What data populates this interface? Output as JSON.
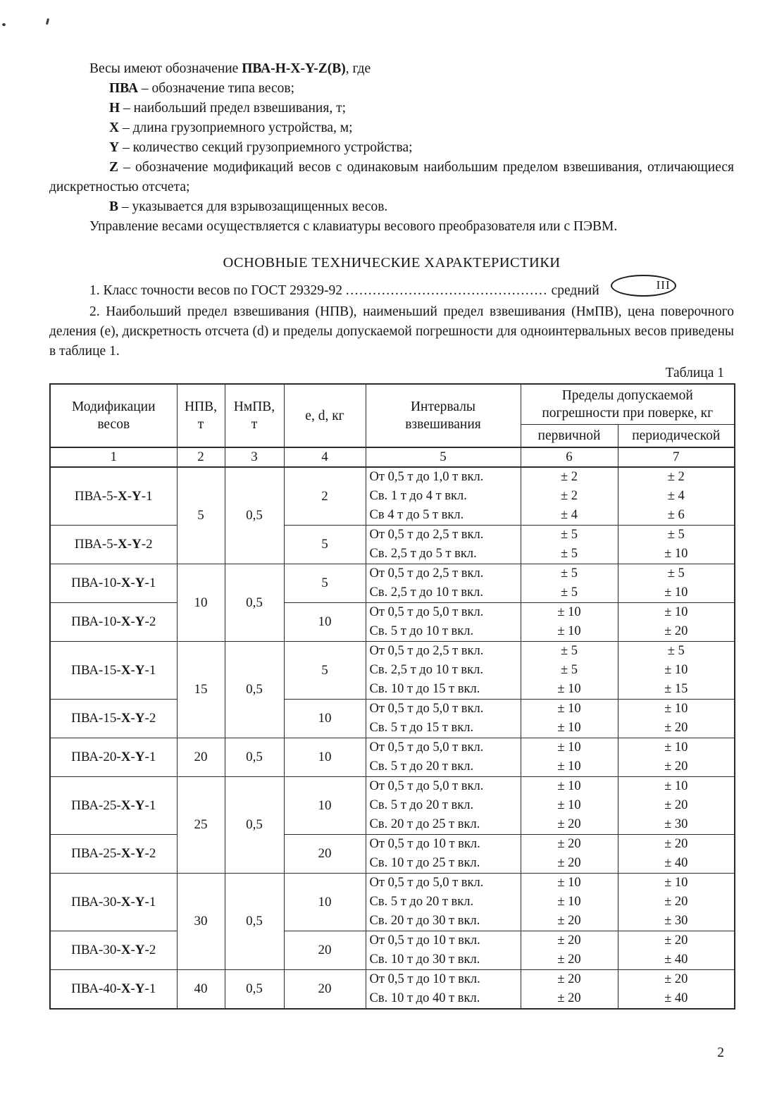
{
  "intro": {
    "line1_normal": "Весы имеют обозначение ",
    "line1_bold": "ПВА-Н-X-Y-Z(В)",
    "line1_tail": ", где",
    "items": [
      {
        "term": "ПВА",
        "text": " – обозначение типа весов;",
        "justify": false
      },
      {
        "term": "Н",
        "text": " – наибольший предел взвешивания, т;",
        "justify": false
      },
      {
        "term": "X",
        "text": " – длина грузоприемного устройства, м;",
        "justify": false
      },
      {
        "term": "Y",
        "text": " – количество секций грузоприемного устройства;",
        "justify": false
      },
      {
        "term": "Z",
        "text": " – обозначение модификаций весов с одинаковым наибольшим пределом взвешивания, отличающиеся дискретностью отсчета;",
        "justify": true
      },
      {
        "term": "В",
        "text": " – указывается для взрывозащищенных весов.",
        "justify": false
      }
    ],
    "control_line": "Управление весами осуществляется с клавиатуры весового преобразователя или с ПЭВМ."
  },
  "section_title": "ОСНОВНЫЕ ТЕХНИЧЕСКИЕ ХАРАКТЕРИСТИКИ",
  "para1": {
    "text": "1. Класс точности весов по ГОСТ 29329-92 ",
    "dots": ".............................................",
    "value": " средний",
    "badge": "III"
  },
  "para2": "2. Наибольший предел взвешивания (НПВ), наименьший предел взвешивания (НмПВ), цена поверочного деления (е), дискретность отсчета (d) и пределы допускаемой погрешности для одноинтервальных весов приведены в таблице 1.",
  "table_caption": "Таблица 1",
  "page_number": "2",
  "table": {
    "headers": {
      "modifications": "Модификации\nвесов",
      "npv": "НПВ,\nт",
      "nmpv": "НмПВ,\nт",
      "ed": "e, d, кг",
      "intervals": "Интервалы\nвзвешивания",
      "limits": "Пределы допускаемой\nпогрешности при поверке, кг",
      "primary": "первичной",
      "periodic": "периодической"
    },
    "col_numbers": [
      "1",
      "2",
      "3",
      "4",
      "5",
      "6",
      "7"
    ],
    "groups": [
      {
        "npv": "5",
        "nmpv": "0,5",
        "mods": [
          {
            "name": "ПВА-5-X-Y-1",
            "ed": "2",
            "rows": [
              {
                "interval": "От 0,5 т до 1,0 т вкл.",
                "primary": "± 2",
                "periodic": "± 2"
              },
              {
                "interval": "Св. 1 т до 4 т вкл.",
                "primary": "± 2",
                "periodic": "± 4"
              },
              {
                "interval": "Св 4 т до 5 т вкл.",
                "primary": "± 4",
                "periodic": "± 6"
              }
            ]
          },
          {
            "name": "ПВА-5-X-Y-2",
            "ed": "5",
            "rows": [
              {
                "interval": "От 0,5 т до 2,5 т вкл.",
                "primary": "± 5",
                "periodic": "± 5"
              },
              {
                "interval": "Св. 2,5 т до 5 т вкл.",
                "primary": "± 5",
                "periodic": "± 10"
              }
            ]
          }
        ]
      },
      {
        "npv": "10",
        "nmpv": "0,5",
        "mods": [
          {
            "name": "ПВА-10-X-Y-1",
            "ed": "5",
            "rows": [
              {
                "interval": "От 0,5 т до 2,5 т вкл.",
                "primary": "± 5",
                "periodic": "± 5"
              },
              {
                "interval": "Св. 2,5 т до 10 т вкл.",
                "primary": "± 5",
                "periodic": "± 10"
              }
            ]
          },
          {
            "name": "ПВА-10-X-Y-2",
            "ed": "10",
            "rows": [
              {
                "interval": "От 0,5 т до 5,0 т вкл.",
                "primary": "± 10",
                "periodic": "± 10"
              },
              {
                "interval": "Св. 5 т до 10 т вкл.",
                "primary": "± 10",
                "periodic": "± 20"
              }
            ]
          }
        ]
      },
      {
        "npv": "15",
        "nmpv": "0,5",
        "mods": [
          {
            "name": "ПВА-15-X-Y-1",
            "ed": "5",
            "rows": [
              {
                "interval": "От 0,5 т до 2,5 т вкл.",
                "primary": "± 5",
                "periodic": "± 5"
              },
              {
                "interval": "Св. 2,5 т до 10 т вкл.",
                "primary": "± 5",
                "periodic": "± 10"
              },
              {
                "interval": "Св. 10 т до 15 т вкл.",
                "primary": "± 10",
                "periodic": "± 15"
              }
            ]
          },
          {
            "name": "ПВА-15-X-Y-2",
            "ed": "10",
            "rows": [
              {
                "interval": "От 0,5 т до 5,0 т вкл.",
                "primary": "± 10",
                "periodic": "± 10"
              },
              {
                "interval": "Св. 5 т до 15 т вкл.",
                "primary": "± 10",
                "periodic": "± 20"
              }
            ]
          }
        ]
      },
      {
        "npv": "20",
        "nmpv": "0,5",
        "mods": [
          {
            "name": "ПВА-20-X-Y-1",
            "ed": "10",
            "rows": [
              {
                "interval": "От 0,5 т до 5,0 т вкл.",
                "primary": "± 10",
                "periodic": "± 10"
              },
              {
                "interval": "Св. 5 т до 20 т вкл.",
                "primary": "± 10",
                "periodic": "± 20"
              }
            ]
          }
        ]
      },
      {
        "npv": "25",
        "nmpv": "0,5",
        "mods": [
          {
            "name": "ПВА-25-X-Y-1",
            "ed": "10",
            "rows": [
              {
                "interval": "От 0,5 т до 5,0 т вкл.",
                "primary": "± 10",
                "periodic": "± 10"
              },
              {
                "interval": "Св. 5 т до 20 т вкл.",
                "primary": "± 10",
                "periodic": "± 20"
              },
              {
                "interval": "Св. 20 т до 25 т вкл.",
                "primary": "± 20",
                "periodic": "± 30"
              }
            ]
          },
          {
            "name": "ПВА-25-X-Y-2",
            "ed": "20",
            "rows": [
              {
                "interval": "От 0,5 т до 10 т вкл.",
                "primary": "± 20",
                "periodic": "± 20"
              },
              {
                "interval": "Св. 10 т до 25 т вкл.",
                "primary": "± 20",
                "periodic": "± 40"
              }
            ]
          }
        ]
      },
      {
        "npv": "30",
        "nmpv": "0,5",
        "mods": [
          {
            "name": "ПВА-30-X-Y-1",
            "ed": "10",
            "rows": [
              {
                "interval": "От 0,5 т до 5,0 т вкл.",
                "primary": "± 10",
                "periodic": "± 10"
              },
              {
                "interval": "Св. 5 т до 20 т вкл.",
                "primary": "± 10",
                "periodic": "± 20"
              },
              {
                "interval": "Св. 20 т до 30 т вкл.",
                "primary": "± 20",
                "periodic": "± 30"
              }
            ]
          },
          {
            "name": "ПВА-30-X-Y-2",
            "ed": "20",
            "rows": [
              {
                "interval": "От 0,5 т до 10 т вкл.",
                "primary": "± 20",
                "periodic": "± 20"
              },
              {
                "interval": "Св. 10 т до 30 т вкл.",
                "primary": "± 20",
                "periodic": "± 40"
              }
            ]
          }
        ]
      },
      {
        "npv": "40",
        "nmpv": "0,5",
        "mods": [
          {
            "name": "ПВА-40-X-Y-1",
            "ed": "20",
            "rows": [
              {
                "interval": "От 0,5 т до 10 т вкл.",
                "primary": "± 20",
                "periodic": "± 20"
              },
              {
                "interval": "Св. 10 т до 40 т вкл.",
                "primary": "± 20",
                "periodic": "± 40"
              }
            ]
          }
        ]
      }
    ]
  }
}
